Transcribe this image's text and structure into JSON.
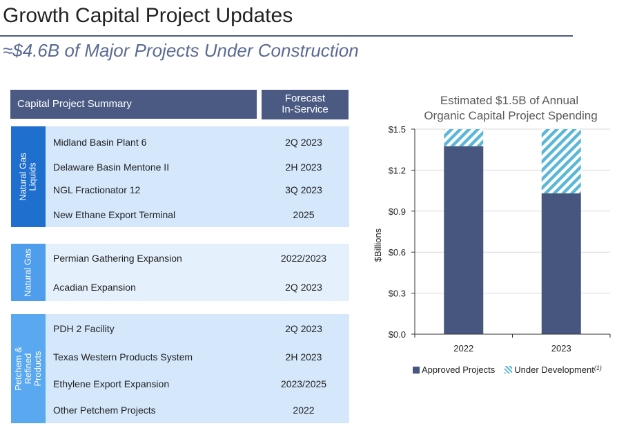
{
  "title": "Growth Capital Project Updates",
  "subtitle": "≈$4.6B of Major Projects Under Construction",
  "table": {
    "header_left": "Capital Project Summary",
    "header_right_line1": "Forecast",
    "header_right_line2": "In-Service",
    "groups": [
      {
        "label_line1": "Natural Gas",
        "label_line2": "Liquids",
        "label_line3": "",
        "color": "#1f6fcf",
        "body": "#d4e7fb",
        "rows": [
          {
            "name": "Midland Basin Plant 6",
            "date": "2Q 2023"
          },
          {
            "name": "Delaware Basin Mentone II",
            "date": "2H 2023"
          },
          {
            "name": "NGL Fractionator 12",
            "date": "3Q 2023"
          },
          {
            "name": "New Ethane Export Terminal",
            "date": "2025"
          }
        ]
      },
      {
        "label_line1": "Natural Gas",
        "label_line2": "",
        "label_line3": "",
        "color": "#4f9ded",
        "body": "#e4f0fc",
        "rows": [
          {
            "name": "Permian Gathering Expansion",
            "date": "2022/2023"
          },
          {
            "name": "Acadian Expansion",
            "date": "2Q 2023"
          }
        ]
      },
      {
        "label_line1": "Petchem &",
        "label_line2": "Refined",
        "label_line3": "Products",
        "color": "#5aa8f0",
        "body": "#d4e7fb",
        "rows": [
          {
            "name": "PDH 2 Facility",
            "date": "2Q 2023"
          },
          {
            "name": "Texas Western Products System",
            "date": "2H 2023"
          },
          {
            "name": "Ethylene Export Expansion",
            "date": "2023/2025"
          },
          {
            "name": "Other Petchem Projects",
            "date": "2022"
          }
        ]
      }
    ]
  },
  "chart_data": {
    "type": "bar",
    "stacked": true,
    "title_line1": "Estimated $1.5B of Annual",
    "title_line2": "Organic Capital Project Spending",
    "ylabel": "$Billions",
    "xlabel": "",
    "categories": [
      "2022",
      "2023"
    ],
    "series": [
      {
        "name": "Approved Projects",
        "values": [
          1.375,
          1.03
        ],
        "color": "#47567f"
      },
      {
        "name": "Under Development",
        "footnote": "(1)",
        "values": [
          0.125,
          0.47
        ],
        "color": "#5bb7d6",
        "pattern": "hatch"
      }
    ],
    "ylim": [
      0,
      1.5
    ],
    "yticks": [
      "$0.0",
      "$0.3",
      "$0.6",
      "$0.9",
      "$1.2",
      "$1.5"
    ],
    "ytick_values": [
      0,
      0.3,
      0.6,
      0.9,
      1.2,
      1.5
    ],
    "grid": true,
    "legend": "bottom"
  }
}
